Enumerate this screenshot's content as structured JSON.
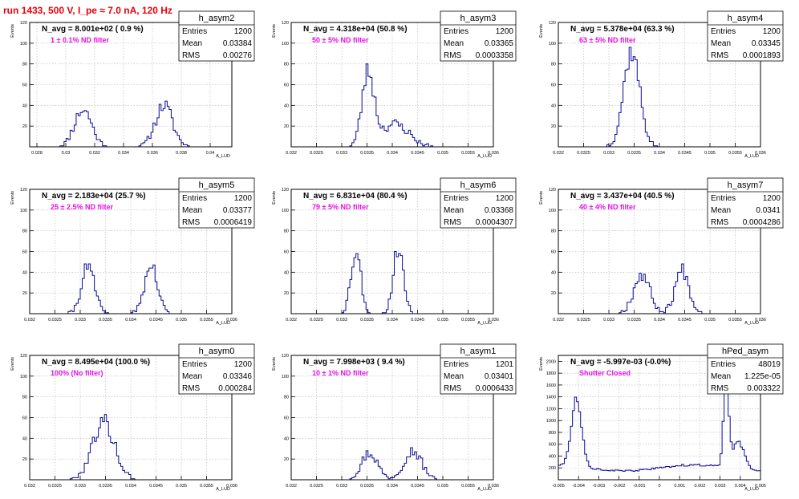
{
  "header": {
    "title": "run 1433,   500 V, I_pe ≈ 7.0 nA, 120 Hz"
  },
  "colors": {
    "title": "#e8000b",
    "histogram": "#0a0a96",
    "annotation": "#e60fe6",
    "grid": "#b4b4b4"
  },
  "chart_data": [
    {
      "type": "histogram",
      "name": "h_asym2",
      "navg": "N_avg = 8.001e+02 ( 0.9 %)",
      "note": "1 ± 0.1% ND filter",
      "stats": [
        [
          "Entries",
          "1200"
        ],
        [
          "Mean",
          "0.03384"
        ],
        [
          "RMS",
          "0.00276"
        ]
      ],
      "xlabel": "A_LUD",
      "ylabel": "Events",
      "xlim": [
        0.0275,
        0.0415
      ],
      "ylim": [
        0,
        120
      ],
      "xticks": [
        0.028,
        0.03,
        0.032,
        0.034,
        0.036,
        0.038,
        0.04
      ],
      "xticklabels": [
        "0.028",
        "0.03",
        "0.032",
        "0.034",
        "0.036",
        "0.038",
        "0.04"
      ],
      "yticks": [
        20,
        40,
        60,
        80,
        100,
        120
      ],
      "peaks": [
        [
          0.0312,
          0.0006,
          36
        ],
        [
          0.0368,
          0.0006,
          40
        ]
      ],
      "seed": 11
    },
    {
      "type": "histogram",
      "name": "h_asym3",
      "navg": "N_avg = 4.318e+04 (50.8 %)",
      "note": "50 ± 5% ND filter",
      "stats": [
        [
          "Entries",
          "1200"
        ],
        [
          "Mean",
          "0.03365"
        ],
        [
          "RMS",
          "0.0003358"
        ]
      ],
      "xlabel": "A_LUD",
      "ylabel": "Events",
      "xlim": [
        0.032,
        0.036
      ],
      "ylim": [
        0,
        120
      ],
      "xticks": [
        0.032,
        0.0325,
        0.033,
        0.0335,
        0.034,
        0.0345,
        0.035,
        0.0355,
        0.036
      ],
      "xticklabels": [
        "0.032",
        "0.0325",
        "0.033",
        "0.0335",
        "0.034",
        "0.0345",
        "0.035",
        "0.0355",
        "0.036"
      ],
      "yticks": [
        20,
        40,
        60,
        80,
        100,
        120
      ],
      "peaks": [
        [
          0.03352,
          0.00012,
          70
        ],
        [
          0.03405,
          0.00028,
          22
        ]
      ],
      "seed": 23
    },
    {
      "type": "histogram",
      "name": "h_asym4",
      "navg": "N_avg = 5.378e+04 (63.3 %)",
      "note": "63 ± 5% ND filter",
      "stats": [
        [
          "Entries",
          "1200"
        ],
        [
          "Mean",
          "0.03345"
        ],
        [
          "RMS",
          "0.0001893"
        ]
      ],
      "xlabel": "A_LUD",
      "ylabel": "Events",
      "xlim": [
        0.032,
        0.036
      ],
      "ylim": [
        0,
        120
      ],
      "xticks": [
        0.032,
        0.0325,
        0.033,
        0.0335,
        0.034,
        0.0345,
        0.035,
        0.0355,
        0.036
      ],
      "xticklabels": [
        "0.032",
        "0.0325",
        "0.033",
        "0.0335",
        "0.034",
        "0.0345",
        "0.035",
        "0.0355",
        "0.036"
      ],
      "yticks": [
        20,
        40,
        60,
        80,
        100,
        120
      ],
      "peaks": [
        [
          0.03345,
          0.00016,
          92
        ]
      ],
      "seed": 37
    },
    {
      "type": "histogram",
      "name": "h_asym5",
      "navg": "N_avg = 2.183e+04 (25.7 %)",
      "note": "25 ± 2.5% ND filter",
      "stats": [
        [
          "Entries",
          "1200"
        ],
        [
          "Mean",
          "0.03377"
        ],
        [
          "RMS",
          "0.0006419"
        ]
      ],
      "xlabel": "A_LUD",
      "ylabel": "Events",
      "xlim": [
        0.032,
        0.036
      ],
      "ylim": [
        0,
        120
      ],
      "xticks": [
        0.032,
        0.0325,
        0.033,
        0.0335,
        0.034,
        0.0345,
        0.035,
        0.0355,
        0.036
      ],
      "xticklabels": [
        "0.032",
        "0.0325",
        "0.033",
        "0.0335",
        "0.034",
        "0.0345",
        "0.035",
        "0.0355",
        "0.036"
      ],
      "yticks": [
        20,
        40,
        60,
        80,
        100,
        120
      ],
      "peaks": [
        [
          0.03315,
          0.00013,
          45
        ],
        [
          0.0344,
          0.00013,
          46
        ]
      ],
      "seed": 41
    },
    {
      "type": "histogram",
      "name": "h_asym6",
      "navg": "N_avg = 6.831e+04 (80.4 %)",
      "note": "79 ± 5% ND filter",
      "stats": [
        [
          "Entries",
          "1200"
        ],
        [
          "Mean",
          "0.03368"
        ],
        [
          "RMS",
          "0.0004307"
        ]
      ],
      "xlabel": "A_LUD",
      "ylabel": "Events",
      "xlim": [
        0.032,
        0.036
      ],
      "ylim": [
        0,
        120
      ],
      "xticks": [
        0.032,
        0.0325,
        0.033,
        0.0335,
        0.034,
        0.0345,
        0.035,
        0.0355,
        0.036
      ],
      "xticklabels": [
        "0.032",
        "0.0325",
        "0.033",
        "0.0335",
        "0.034",
        "0.0345",
        "0.035",
        "0.0355",
        "0.036"
      ],
      "yticks": [
        20,
        40,
        60,
        80,
        100,
        120
      ],
      "peaks": [
        [
          0.03328,
          0.0001,
          60
        ],
        [
          0.03412,
          0.0001,
          64
        ]
      ],
      "seed": 53
    },
    {
      "type": "histogram",
      "name": "h_asym7",
      "navg": "N_avg = 3.437e+04 (40.5 %)",
      "note": "40 ± 4% ND filter",
      "stats": [
        [
          "Entries",
          "1200"
        ],
        [
          "Mean",
          "0.0341"
        ],
        [
          "RMS",
          "0.0004286"
        ]
      ],
      "xlabel": "A_LUD",
      "ylabel": "Events",
      "xlim": [
        0.032,
        0.036
      ],
      "ylim": [
        0,
        120
      ],
      "xticks": [
        0.032,
        0.0325,
        0.033,
        0.0335,
        0.034,
        0.0345,
        0.035,
        0.0355,
        0.036
      ],
      "xticklabels": [
        "0.032",
        "0.0325",
        "0.033",
        "0.0335",
        "0.034",
        "0.0345",
        "0.035",
        "0.0355",
        "0.036"
      ],
      "yticks": [
        20,
        40,
        60,
        80,
        100,
        120
      ],
      "peaks": [
        [
          0.03365,
          0.00016,
          38
        ],
        [
          0.03445,
          0.00014,
          42
        ]
      ],
      "seed": 67
    },
    {
      "type": "histogram",
      "name": "h_asym0",
      "navg": "N_avg = 8.495e+04 (100.0 %)",
      "note": "100% (No filter)",
      "stats": [
        [
          "Entries",
          "1200"
        ],
        [
          "Mean",
          "0.03346"
        ],
        [
          "RMS",
          "0.000284"
        ]
      ],
      "xlabel": "A_LUD",
      "ylabel": "Events",
      "xlim": [
        0.032,
        0.036
      ],
      "ylim": [
        0,
        120
      ],
      "xticks": [
        0.032,
        0.0325,
        0.033,
        0.0335,
        0.034,
        0.0345,
        0.035,
        0.0355,
        0.036
      ],
      "xticklabels": [
        "0.032",
        "0.0325",
        "0.033",
        "0.0335",
        "0.034",
        "0.0345",
        "0.035",
        "0.0355",
        "0.036"
      ],
      "yticks": [
        20,
        40,
        60,
        80,
        100,
        120
      ],
      "peaks": [
        [
          0.03346,
          0.00022,
          56
        ]
      ],
      "seed": 79
    },
    {
      "type": "histogram",
      "name": "h_asym1",
      "navg": "N_avg = 7.998e+03 ( 9.4 %)",
      "note": "10 ± 1% ND filter",
      "stats": [
        [
          "Entries",
          "1201"
        ],
        [
          "Mean",
          "0.03401"
        ],
        [
          "RMS",
          "0.0006433"
        ]
      ],
      "xlabel": "A_LUD",
      "ylabel": "Events",
      "xlim": [
        0.032,
        0.036
      ],
      "ylim": [
        0,
        120
      ],
      "xticks": [
        0.032,
        0.0325,
        0.033,
        0.0335,
        0.034,
        0.0345,
        0.035,
        0.0355,
        0.036
      ],
      "xticklabels": [
        "0.032",
        "0.0325",
        "0.033",
        "0.0335",
        "0.034",
        "0.0345",
        "0.035",
        "0.0355",
        "0.036"
      ],
      "yticks": [
        20,
        40,
        60,
        80,
        100,
        120
      ],
      "peaks": [
        [
          0.03355,
          0.00016,
          26
        ],
        [
          0.0344,
          0.00018,
          28
        ]
      ],
      "seed": 97
    },
    {
      "type": "histogram",
      "name": "hPed_asym",
      "navg": "N_avg = -5.997e-03 (-0.0%)",
      "note": "Shutter Closed",
      "stats": [
        [
          "Entries",
          "48019"
        ],
        [
          "Mean",
          "1.225e-05"
        ],
        [
          "RMS",
          "0.003322"
        ]
      ],
      "xlabel": "A_LUD",
      "ylabel": "Events",
      "xlim": [
        -0.005,
        0.005
      ],
      "ylim": [
        0,
        2100
      ],
      "xticks": [
        -0.005,
        -0.004,
        -0.003,
        -0.002,
        -0.001,
        0,
        0.001,
        0.002,
        0.003,
        0.004,
        0.005
      ],
      "xticklabels": [
        "-0.005",
        "-0.004",
        "-0.003",
        "-0.002",
        "-0.001",
        "0",
        "0.001",
        "0.002",
        "0.003",
        "0.004",
        "0.005"
      ],
      "yticks": [
        200,
        400,
        600,
        800,
        1000,
        1200,
        1400,
        1600,
        1800,
        2000
      ],
      "baseline": 200,
      "peaks": [
        [
          -0.0041,
          0.00025,
          1150
        ],
        [
          0.0033,
          0.00012,
          1650
        ],
        [
          0.0039,
          0.0003,
          450
        ]
      ],
      "seed": 113
    }
  ]
}
